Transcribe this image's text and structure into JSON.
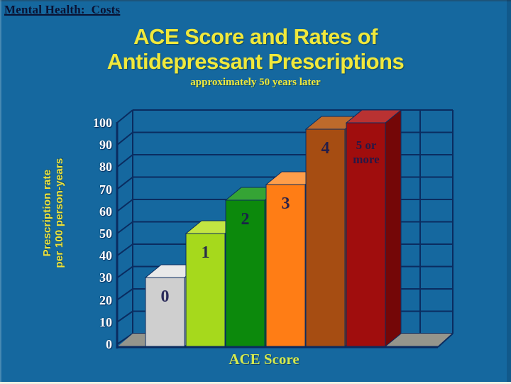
{
  "slide": {
    "header": "Mental Health:  Costs",
    "background_color": "#15689F",
    "accent_text_color": "#F0E83C"
  },
  "title": {
    "line1": "ACE Score and Rates of",
    "line2": "Antidepressant Prescriptions",
    "subtitle": "approximately 50 years later"
  },
  "chart_data": {
    "type": "bar",
    "projection": "3d",
    "title": "ACE Score and Rates of Antidepressant Prescriptions",
    "subtitle": "approximately 50 years later",
    "categories": [
      "0",
      "1",
      "2",
      "3",
      "4",
      "5 or more"
    ],
    "values": [
      30,
      50,
      65,
      72,
      97,
      100
    ],
    "xlabel": "ACE Score",
    "ylabel": "Prescription rate per 100 person-years",
    "ylabel_lines": [
      "Prescription rate",
      "per 100 person-years"
    ],
    "ylim": [
      0,
      100
    ],
    "ytick_step": 10,
    "grid": true,
    "legend": "none",
    "frame_color": "#0A2C60",
    "floor_color": "#95958C",
    "tick_label_color": "#FFFFFF",
    "bar_label_color": "#1A1A4E",
    "bars": [
      {
        "category": "0",
        "value": 30,
        "front": "#CFCFCF",
        "top": "#E9E9E9",
        "side": "#ABABAB"
      },
      {
        "category": "1",
        "value": 50,
        "front": "#A6D91C",
        "top": "#C3E542",
        "side": "#85B512"
      },
      {
        "category": "2",
        "value": 65,
        "front": "#0C890C",
        "top": "#35A435",
        "side": "#076607"
      },
      {
        "category": "3",
        "value": 72,
        "front": "#FF7D15",
        "top": "#FF9E4A",
        "side": "#D96208"
      },
      {
        "category": "4",
        "value": 97,
        "front": "#A64D12",
        "top": "#BE6A2B",
        "side": "#83380C"
      },
      {
        "category": "5 or more",
        "value": 100,
        "front": "#A00D0D",
        "top": "#B93232",
        "side": "#740707"
      }
    ]
  }
}
